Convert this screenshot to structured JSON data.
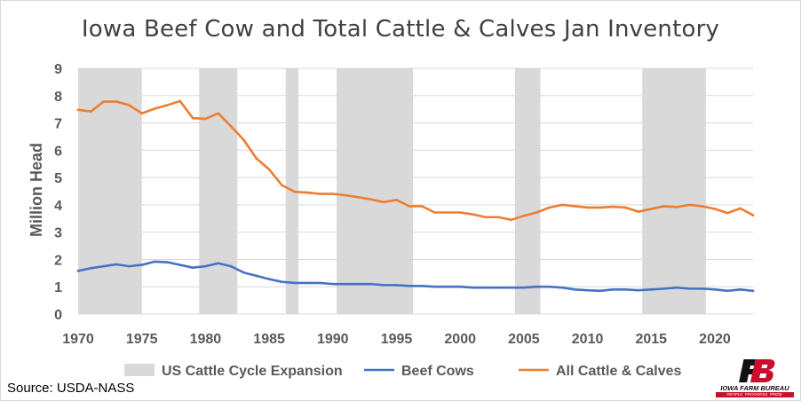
{
  "chart_data": {
    "type": "line",
    "title": "Iowa Beef Cow and Total Cattle & Calves Jan Inventory",
    "ylabel": "Million Head",
    "xlabel": "",
    "xlim": [
      1970,
      2023
    ],
    "ylim": [
      0,
      9
    ],
    "x_ticks": [
      "1970",
      "1975",
      "1980",
      "1985",
      "1990",
      "1995",
      "2000",
      "2005",
      "2010",
      "2015",
      "2020"
    ],
    "y_ticks": [
      "0",
      "1",
      "2",
      "3",
      "4",
      "5",
      "6",
      "7",
      "8",
      "9"
    ],
    "grid": true,
    "legend_position": "bottom",
    "shaded_periods": {
      "name": "US Cattle Cycle Expansion",
      "color": "#d9d9d9",
      "ranges": [
        [
          1970,
          1975
        ],
        [
          1979.5,
          1982.5
        ],
        [
          1986.3,
          1987.3
        ],
        [
          1990.3,
          1996.3
        ],
        [
          2004.3,
          2006.3
        ],
        [
          2014.3,
          2019.3
        ]
      ]
    },
    "x": [
      1970,
      1971,
      1972,
      1973,
      1974,
      1975,
      1976,
      1977,
      1978,
      1979,
      1980,
      1981,
      1982,
      1983,
      1984,
      1985,
      1986,
      1987,
      1988,
      1989,
      1990,
      1991,
      1992,
      1993,
      1994,
      1995,
      1996,
      1997,
      1998,
      1999,
      2000,
      2001,
      2002,
      2003,
      2004,
      2005,
      2006,
      2007,
      2008,
      2009,
      2010,
      2011,
      2012,
      2013,
      2014,
      2015,
      2016,
      2017,
      2018,
      2019,
      2020,
      2021,
      2022,
      2023
    ],
    "series": [
      {
        "name": "Beef Cows",
        "color": "#4472c4",
        "values": [
          1.58,
          1.68,
          1.75,
          1.82,
          1.75,
          1.8,
          1.92,
          1.9,
          1.8,
          1.7,
          1.75,
          1.86,
          1.75,
          1.52,
          1.4,
          1.28,
          1.18,
          1.14,
          1.14,
          1.14,
          1.1,
          1.1,
          1.1,
          1.1,
          1.06,
          1.06,
          1.03,
          1.03,
          1.0,
          1.0,
          1.0,
          0.97,
          0.97,
          0.97,
          0.97,
          0.97,
          1.0,
          1.0,
          0.97,
          0.9,
          0.87,
          0.85,
          0.9,
          0.9,
          0.87,
          0.9,
          0.93,
          0.97,
          0.93,
          0.93,
          0.9,
          0.85,
          0.9,
          0.85
        ]
      },
      {
        "name": "All Cattle & Calves",
        "color": "#ed7d31",
        "values": [
          7.48,
          7.42,
          7.78,
          7.78,
          7.65,
          7.35,
          7.52,
          7.65,
          7.8,
          7.18,
          7.15,
          7.35,
          6.88,
          6.38,
          5.7,
          5.3,
          4.72,
          4.48,
          4.45,
          4.4,
          4.4,
          4.35,
          4.28,
          4.2,
          4.1,
          4.18,
          3.95,
          3.95,
          3.72,
          3.72,
          3.72,
          3.65,
          3.55,
          3.55,
          3.45,
          3.6,
          3.72,
          3.9,
          4.0,
          3.95,
          3.9,
          3.9,
          3.93,
          3.9,
          3.75,
          3.85,
          3.95,
          3.92,
          4.0,
          3.95,
          3.85,
          3.7,
          3.87,
          3.62
        ]
      }
    ]
  },
  "source": "Source: USDA-NASS",
  "logo": {
    "name": "IOWA FARM BUREAU",
    "tagline": "PEOPLE. PROGRESS. PRIDE."
  }
}
